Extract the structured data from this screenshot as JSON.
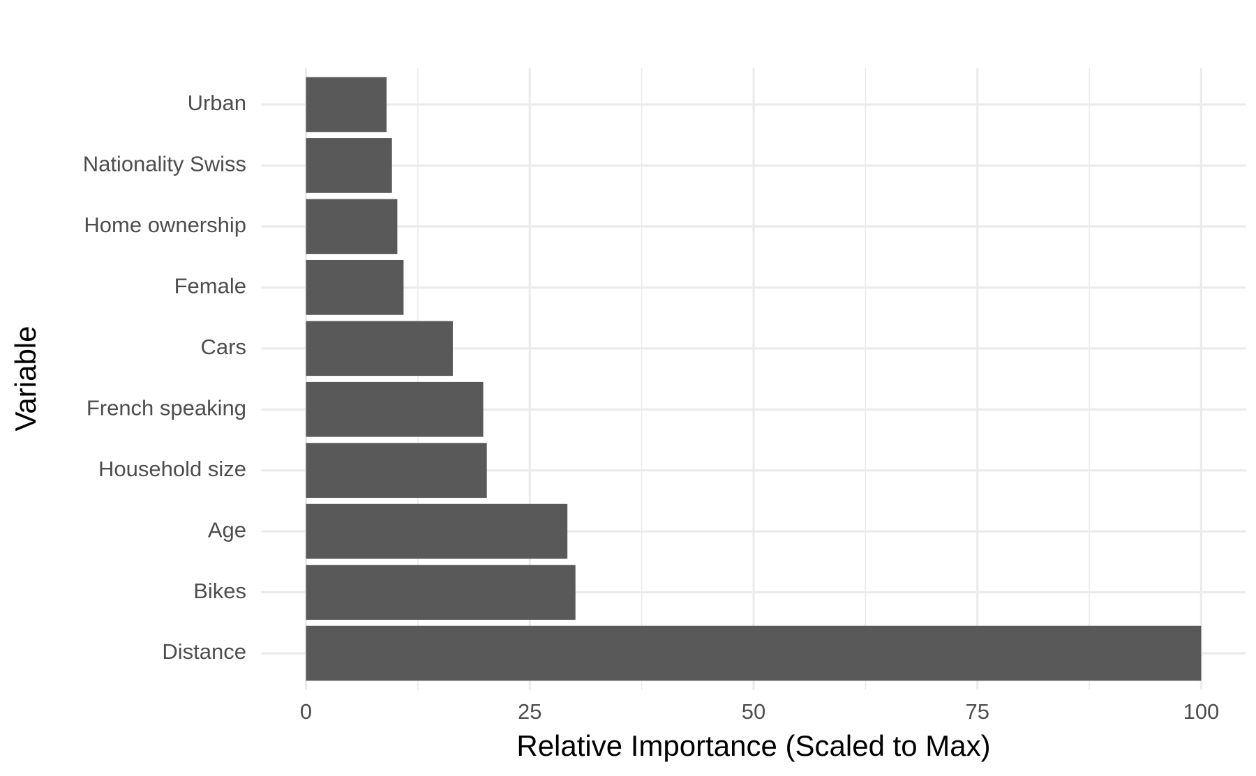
{
  "chart_data": {
    "type": "barh",
    "x_label": "Relative Importance (Scaled to Max)",
    "y_label": "Variable",
    "categories": [
      "Distance",
      "Bikes",
      "Age",
      "Household size",
      "French speaking",
      "Cars",
      "Female",
      "Home ownership",
      "Nationality Swiss",
      "Urban"
    ],
    "values": [
      100,
      30.1,
      29.2,
      20.2,
      19.8,
      16.4,
      10.9,
      10.2,
      9.6,
      9.0
    ],
    "color": "#595959",
    "xlim": [
      -5,
      105
    ],
    "xticks": [
      0,
      25,
      50,
      75,
      100
    ],
    "xminorticks": [
      12.5,
      37.5,
      62.5,
      87.5
    ],
    "grid": true
  }
}
